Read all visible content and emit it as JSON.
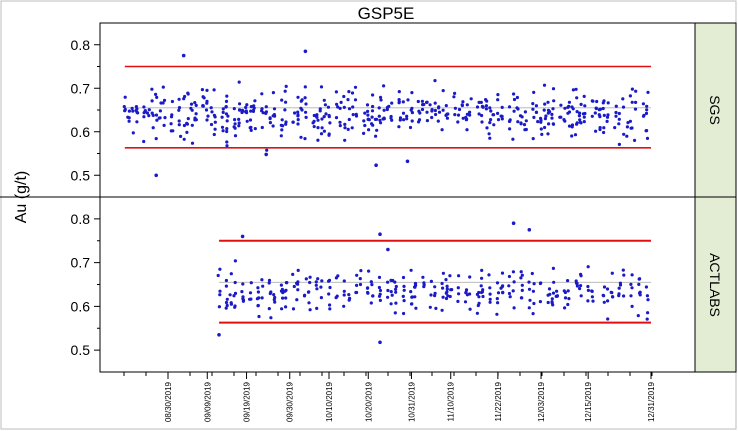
{
  "chart_data": {
    "type": "scatter",
    "title": "GSP5E",
    "ylabel": "Au (g/t)",
    "xlabel": "",
    "ylim": [
      0.45,
      0.85
    ],
    "y_ticks": [
      "0.5",
      "0.6",
      "0.7",
      "0.8"
    ],
    "x_tick_labels": [
      "08/30/2019",
      "09/09/2019",
      "09/19/2019",
      "09/30/2019",
      "10/10/2019",
      "10/20/2019",
      "10/31/2019",
      "11/10/2019",
      "11/22/2019",
      "12/03/2019",
      "12/15/2019",
      "12/31/2019"
    ],
    "grid": false,
    "series_color": "#1a1ac8",
    "limit_color": "#e01010",
    "mean_color": "#b0b0b0",
    "facet_color": "#e3edd3",
    "panels": [
      {
        "label": "SGS",
        "upper_limit": 0.75,
        "lower_limit": 0.563,
        "mean": 0.655,
        "x_range": [
          "2019-08-19",
          "2019-12-31"
        ],
        "n_points": 560,
        "center": 0.64,
        "spread": 0.038,
        "highlights": [
          [
            "2019-08-27",
            0.5
          ],
          [
            "2019-09-03",
            0.775
          ],
          [
            "2019-10-04",
            0.785
          ],
          [
            "2019-10-22",
            0.523
          ],
          [
            "2019-10-30",
            0.532
          ],
          [
            "2019-09-24",
            0.548
          ]
        ]
      },
      {
        "label": "ACTLABS",
        "upper_limit": 0.75,
        "lower_limit": 0.563,
        "mean": 0.655,
        "x_range": [
          "2019-09-12",
          "2019-12-31"
        ],
        "n_points": 340,
        "center": 0.635,
        "spread": 0.035,
        "highlights": [
          [
            "2019-09-12",
            0.535
          ],
          [
            "2019-09-18",
            0.76
          ],
          [
            "2019-10-23",
            0.765
          ],
          [
            "2019-10-23",
            0.518
          ],
          [
            "2019-11-26",
            0.79
          ],
          [
            "2019-11-30",
            0.775
          ],
          [
            "2019-10-25",
            0.73
          ]
        ]
      }
    ]
  }
}
